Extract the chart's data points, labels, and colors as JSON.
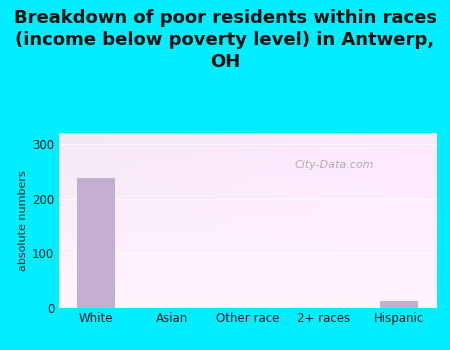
{
  "title": "Breakdown of poor residents within races\n(income below poverty level) in Antwerp,\nOH",
  "categories": [
    "White",
    "Asian",
    "Other race",
    "2+ races",
    "Hispanic"
  ],
  "values": [
    238,
    0,
    0,
    0,
    13
  ],
  "bar_color": "#c4afd0",
  "ylabel": "absolute numbers",
  "ylim": [
    0,
    320
  ],
  "yticks": [
    0,
    100,
    200,
    300
  ],
  "bg_outer": "#00eeff",
  "title_fontsize": 13,
  "axis_label_fontsize": 8,
  "tick_fontsize": 8.5,
  "watermark": "City-Data.com"
}
